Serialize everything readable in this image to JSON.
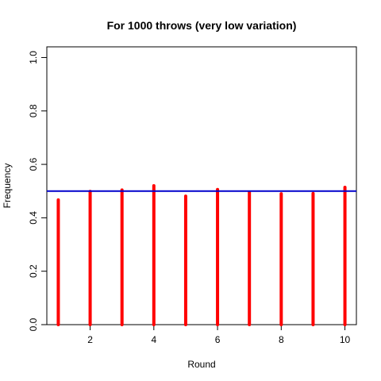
{
  "chart_data": {
    "type": "bar",
    "title": "For 1000 throws (very low variation)",
    "xlabel": "Round",
    "ylabel": "Frequency",
    "x": [
      1,
      2,
      3,
      4,
      5,
      6,
      7,
      8,
      9,
      10
    ],
    "values": [
      0.467,
      0.499,
      0.504,
      0.52,
      0.481,
      0.506,
      0.495,
      0.49,
      0.491,
      0.514
    ],
    "xlim": [
      0.64,
      10.36
    ],
    "ylim": [
      0,
      1.04
    ],
    "x_ticks": [
      2,
      4,
      6,
      8,
      10
    ],
    "y_ticks": [
      0.0,
      0.2,
      0.4,
      0.6,
      0.8,
      1.0
    ],
    "x_tick_labels": [
      "2",
      "4",
      "6",
      "8",
      "10"
    ],
    "y_tick_labels": [
      "0.0",
      "0.2",
      "0.4",
      "0.6",
      "0.8",
      "1.0"
    ],
    "reference_line": {
      "y": 0.5,
      "color": "#0000cc"
    },
    "bar_color": "#ff0000",
    "grid": false,
    "legend": "none"
  }
}
